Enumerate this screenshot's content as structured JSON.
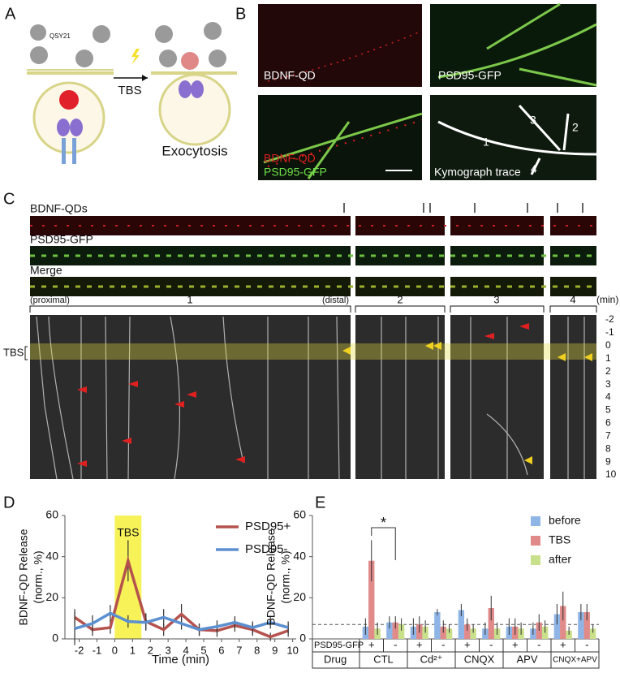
{
  "panel_labels": [
    "A",
    "B",
    "C",
    "D",
    "E"
  ],
  "panel_a": {
    "quencher": "QSY21",
    "stimulus": "TBS",
    "result": "Exocytosis"
  },
  "panel_b": {
    "images": [
      "BDNF-QD",
      "PSD95-GFP"
    ],
    "merge": [
      "BDNF-QD",
      "PSD95-GFP"
    ],
    "trace": "Kymograph trace",
    "trace_numbers": [
      "1",
      "2",
      "3",
      "4"
    ]
  },
  "panel_c": {
    "rows": [
      "BDNF-QDs",
      "PSD95-GFP",
      "Merge"
    ],
    "proximal": "(proximal)",
    "distal": "(distal)",
    "segments": [
      "1",
      "2",
      "3",
      "4"
    ],
    "time_unit": "(min)",
    "time_ticks": [
      -2,
      -1,
      0,
      1,
      2,
      3,
      4,
      5,
      6,
      7,
      8,
      9,
      10
    ],
    "stimulus": "TBS"
  },
  "chart_data": [
    {
      "type": "line",
      "annotation": "TBS",
      "highlight": [
        0,
        1.5
      ],
      "xlabel": "Time (min)",
      "ylabel": [
        "BDNF-QD Release",
        "(norm., %)"
      ],
      "x": [
        -2.25,
        -1.25,
        -0.25,
        0.75,
        1.75,
        2.75,
        3.75,
        4.75,
        5.75,
        6.75,
        7.75,
        8.75,
        9.75
      ],
      "series": [
        {
          "name": "PSD95+",
          "color": "#b5524e",
          "values": [
            10.5,
            4.5,
            5.5,
            38,
            8.5,
            4.5,
            12,
            4.5,
            4,
            6.5,
            4.5,
            1,
            4
          ],
          "errors": [
            4,
            3,
            3,
            10,
            4,
            3,
            5,
            3,
            3,
            3,
            3,
            2,
            3
          ]
        },
        {
          "name": "PSD95-",
          "color": "#5b8fd0",
          "values": [
            5,
            7.5,
            12.5,
            8.5,
            8,
            10.5,
            7.5,
            4.5,
            6,
            8,
            5.5,
            8,
            5.5
          ],
          "errors": [
            8,
            4,
            4,
            3,
            4,
            4,
            3,
            3,
            3,
            3,
            3,
            3,
            3
          ]
        }
      ],
      "xlim": [
        -2.8,
        10.2
      ],
      "xticks": [
        -2,
        -1,
        0,
        1,
        2,
        3,
        4,
        5,
        6,
        7,
        8,
        9,
        10
      ],
      "ylim": [
        0,
        60
      ],
      "yticks": [
        0,
        20,
        40,
        60
      ]
    },
    {
      "type": "bar",
      "ylabel": [
        "BDNF-QD Release",
        "(norm., %)"
      ],
      "annotation": "*",
      "reference_line": 7,
      "row_labels": [
        "PSD95-GFP",
        "Drug"
      ],
      "categories": [
        "+",
        "-",
        "+",
        "-",
        "+",
        "-",
        "+",
        "-",
        "+",
        "-"
      ],
      "groups": [
        "CTL",
        "Cd²⁺",
        "CNQX",
        "APV",
        "CNQX+APV"
      ],
      "series": [
        {
          "name": "before",
          "color": "#8fb4e6",
          "values": [
            6,
            8,
            6,
            13,
            14,
            5,
            6,
            5,
            12,
            13
          ],
          "errors": [
            4,
            3,
            4,
            1.5,
            3,
            3,
            4,
            3,
            5,
            4
          ]
        },
        {
          "name": "TBS",
          "color": "#e08a8a",
          "values": [
            38,
            8,
            7,
            6,
            7,
            15,
            6,
            8,
            16,
            13
          ],
          "errors": [
            10,
            3,
            4,
            3,
            3,
            6,
            4,
            4,
            7,
            4
          ]
        },
        {
          "name": "after",
          "color": "#c8e08a",
          "values": [
            5,
            7,
            6,
            5,
            5,
            5,
            5,
            6,
            4,
            5
          ],
          "errors": [
            3,
            3,
            3,
            2,
            2,
            3,
            3,
            3,
            2,
            2
          ]
        }
      ],
      "ylim": [
        0,
        60
      ],
      "yticks": [
        0,
        20,
        40,
        60
      ]
    }
  ]
}
